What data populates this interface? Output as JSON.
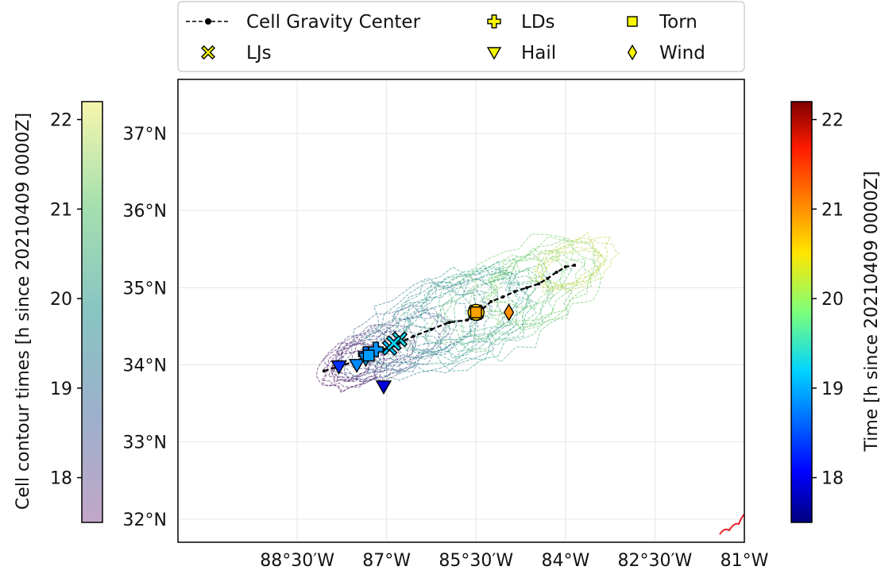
{
  "chart_data": {
    "type": "scatter",
    "title": "",
    "map_axes": {
      "lon_ticks": [
        {
          "value": -88.5,
          "label": "88°30′W"
        },
        {
          "value": -87.0,
          "label": "87°W"
        },
        {
          "value": -85.5,
          "label": "85°30′W"
        },
        {
          "value": -84.0,
          "label": "84°W"
        },
        {
          "value": -82.5,
          "label": "82°30′W"
        },
        {
          "value": -81.0,
          "label": "81°W"
        }
      ],
      "lat_ticks": [
        {
          "value": 37,
          "label": "37°N"
        },
        {
          "value": 36,
          "label": "36°N"
        },
        {
          "value": 35,
          "label": "35°N"
        },
        {
          "value": 34,
          "label": "34°N"
        },
        {
          "value": 33,
          "label": "33°N"
        },
        {
          "value": 32,
          "label": "32°N"
        }
      ],
      "lon_range": [
        -90.5,
        -81.0
      ],
      "lat_range": [
        31.7,
        37.7
      ],
      "grid": true
    },
    "legend": {
      "placement": "top-center",
      "entries": [
        {
          "label": "Cell Gravity Center",
          "symbol": "line-dot"
        },
        {
          "label": "LDs",
          "symbol": "plus"
        },
        {
          "label": "Torn",
          "symbol": "square"
        },
        {
          "label": "LJs",
          "symbol": "x"
        },
        {
          "label": "Hail",
          "symbol": "triangle-down"
        },
        {
          "label": "Wind",
          "symbol": "diamond"
        }
      ]
    },
    "left_colorbar": {
      "label": "Cell contour times [h since 20210409 0000Z]",
      "colormap": "viridis (transparent)",
      "range": [
        17.5,
        22.2
      ],
      "ticks": [
        18,
        19,
        20,
        21,
        22
      ]
    },
    "right_colorbar": {
      "label": "Time [h since 20210409 0000Z]",
      "colormap": "jet",
      "range": [
        17.5,
        22.2
      ],
      "ticks": [
        18,
        19,
        20,
        21,
        22
      ]
    },
    "gravity_center_track": {
      "lon": [
        -88.05,
        -87.8,
        -87.55,
        -87.3,
        -87.05,
        -86.8,
        -86.55,
        -86.25,
        -85.95,
        -85.65,
        -85.45,
        -85.25,
        -85.05,
        -84.85,
        -84.65,
        -84.45,
        -84.3,
        -84.15,
        -84.0,
        -83.85
      ],
      "lat": [
        33.92,
        33.98,
        34.04,
        34.12,
        34.2,
        34.28,
        34.37,
        34.46,
        34.55,
        34.58,
        34.68,
        34.82,
        34.88,
        34.95,
        35.0,
        35.05,
        35.12,
        35.2,
        35.27,
        35.29
      ]
    },
    "contour_clusters": [
      {
        "lon": -87.6,
        "lat": 34.0,
        "rx": 0.55,
        "ry": 0.28,
        "time": 17.6
      },
      {
        "lon": -87.2,
        "lat": 34.15,
        "rx": 0.7,
        "ry": 0.32,
        "time": 18.2
      },
      {
        "lon": -86.7,
        "lat": 34.3,
        "rx": 0.95,
        "ry": 0.42,
        "time": 18.9
      },
      {
        "lon": -86.2,
        "lat": 34.5,
        "rx": 1.15,
        "ry": 0.55,
        "time": 19.5
      },
      {
        "lon": -85.6,
        "lat": 34.65,
        "rx": 1.3,
        "ry": 0.62,
        "time": 20.0
      },
      {
        "lon": -85.1,
        "lat": 34.8,
        "rx": 1.25,
        "ry": 0.58,
        "time": 20.6
      },
      {
        "lon": -84.5,
        "lat": 35.05,
        "rx": 1.05,
        "ry": 0.5,
        "time": 21.1
      },
      {
        "lon": -83.9,
        "lat": 35.3,
        "rx": 0.9,
        "ry": 0.38,
        "time": 21.7
      }
    ],
    "reports": [
      {
        "type": "LDs",
        "lon": -87.18,
        "lat": 34.2,
        "time": 18.85
      },
      {
        "type": "LDs",
        "lon": -87.35,
        "lat": 34.14,
        "time": 18.7
      },
      {
        "type": "LJs",
        "lon": -86.95,
        "lat": 34.22,
        "time": 19.1
      },
      {
        "type": "LJs",
        "lon": -86.78,
        "lat": 34.33,
        "time": 19.3
      },
      {
        "type": "LJs",
        "lon": -86.88,
        "lat": 34.28,
        "time": 19.2
      },
      {
        "type": "LJs",
        "lon": -85.5,
        "lat": 34.68,
        "time": 20.6
      },
      {
        "type": "Hail",
        "lon": -87.8,
        "lat": 33.98,
        "time": 18.3
      },
      {
        "type": "Hail",
        "lon": -87.5,
        "lat": 34.0,
        "time": 18.8
      },
      {
        "type": "Hail",
        "lon": -87.35,
        "lat": 34.08,
        "time": 18.9
      },
      {
        "type": "Hail",
        "lon": -87.05,
        "lat": 33.72,
        "time": 17.9
      },
      {
        "type": "Torn",
        "lon": -87.3,
        "lat": 34.12,
        "time": 18.9
      },
      {
        "type": "Torn",
        "lon": -85.5,
        "lat": 34.68,
        "time": 20.9
      },
      {
        "type": "Wind",
        "lon": -84.95,
        "lat": 34.68,
        "time": 21.0
      }
    ]
  }
}
